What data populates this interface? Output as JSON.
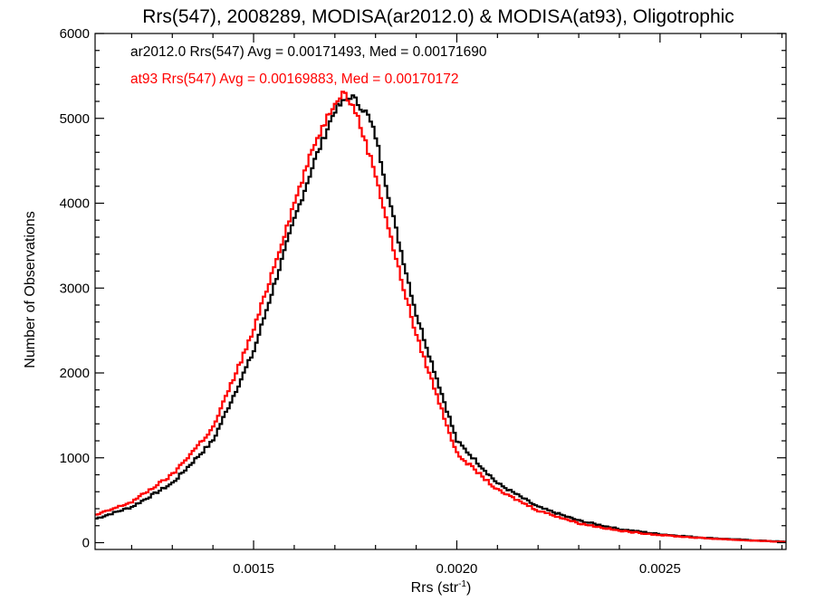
{
  "chart_data": {
    "type": "histogram",
    "title": "Rrs(547), 2008289, MODISA(ar2012.0) & MODISA(at93), Oligotrophic",
    "xlabel": "Rrs (str",
    "xlabel_sup": "-1",
    "xlabel_close": ")",
    "ylabel": "Number of Observations",
    "xlim": [
      0.00111,
      0.00281
    ],
    "ylim": [
      -80,
      6000
    ],
    "x_ticks": [
      0.0015,
      0.002,
      0.0025
    ],
    "x_tick_labels": [
      "0.0015",
      "0.0020",
      "0.0025"
    ],
    "y_ticks": [
      0,
      1000,
      2000,
      3000,
      4000,
      5000,
      6000
    ],
    "y_tick_labels": [
      "0",
      "1000",
      "2000",
      "3000",
      "4000",
      "5000",
      "6000"
    ],
    "bin_width": 6.25e-06,
    "series": [
      {
        "name": "ar2012.0",
        "color": "#000000",
        "legend_text": "ar2012.0 Rrs(547) Avg = 0.00171493, Med = 0.00171690",
        "peak_x": 0.00174,
        "peak_y": 5270,
        "curve_x": [
          0.00111,
          0.0012,
          0.0013,
          0.0014,
          0.0015,
          0.0016,
          0.00165,
          0.0017,
          0.00174,
          0.00178,
          0.0018,
          0.00185,
          0.0019,
          0.00195,
          0.002,
          0.0021,
          0.0022,
          0.0023,
          0.0024,
          0.0025,
          0.0026,
          0.0027,
          0.00281
        ],
        "curve_y": [
          280,
          420,
          700,
          1200,
          2250,
          3800,
          4500,
          5100,
          5270,
          5050,
          4800,
          3700,
          2700,
          1950,
          1200,
          700,
          420,
          260,
          160,
          100,
          60,
          35,
          10
        ]
      },
      {
        "name": "at93",
        "color": "#ff0000",
        "legend_text": "at93 Rrs(547) Avg = 0.00169883, Med = 0.00170172",
        "peak_x": 0.00172,
        "peak_y": 5320,
        "curve_x": [
          0.00111,
          0.0012,
          0.0013,
          0.0014,
          0.0015,
          0.0016,
          0.00165,
          0.0017,
          0.00172,
          0.00175,
          0.0018,
          0.00185,
          0.0019,
          0.00195,
          0.002,
          0.0021,
          0.0022,
          0.0023,
          0.0024,
          0.0025,
          0.0026,
          0.0027,
          0.00281
        ],
        "curve_y": [
          320,
          480,
          800,
          1350,
          2500,
          4000,
          4700,
          5200,
          5320,
          5100,
          4350,
          3350,
          2450,
          1750,
          1050,
          620,
          380,
          230,
          140,
          90,
          55,
          30,
          8
        ]
      }
    ],
    "grid": false,
    "legend_position": "top-left"
  }
}
